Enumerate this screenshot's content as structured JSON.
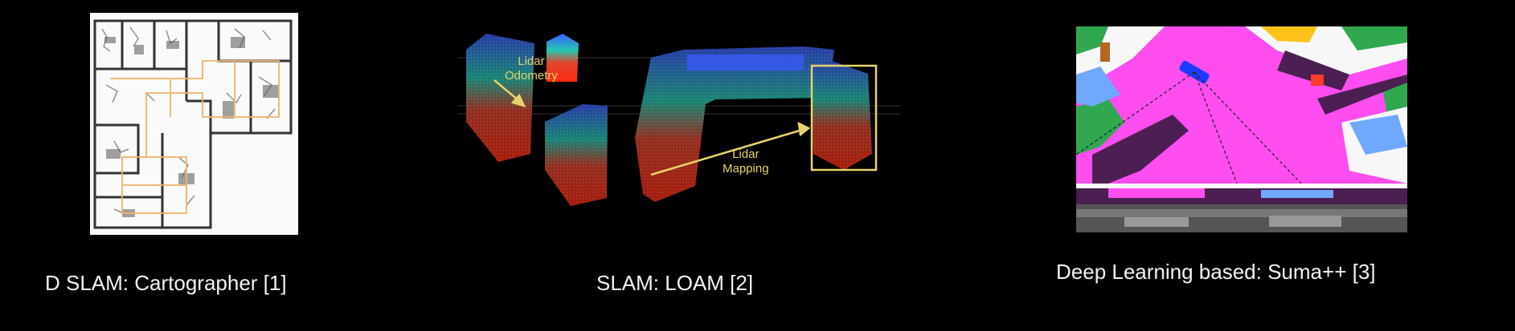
{
  "captions": {
    "left": "D SLAM: Cartographer [1]",
    "center": "SLAM:  LOAM [2]",
    "right": "Deep Learning based:  Suma++ [3]"
  },
  "loam": {
    "odometry_label_line1": "Lidar",
    "odometry_label_line2": "Odometry",
    "mapping_label_line1": "Lidar",
    "mapping_label_line2": "Mapping"
  },
  "colors": {
    "background": "#000000",
    "caption_text": "#f2f2f2",
    "annotation_yellow": "#e8d36a",
    "semantic_road": "#ff4df0",
    "semantic_sidewalk": "#4b1f52",
    "semantic_vegetation": "#2fa84f",
    "semantic_building": "#ffc21a",
    "semantic_car": "#6fa8ff"
  }
}
